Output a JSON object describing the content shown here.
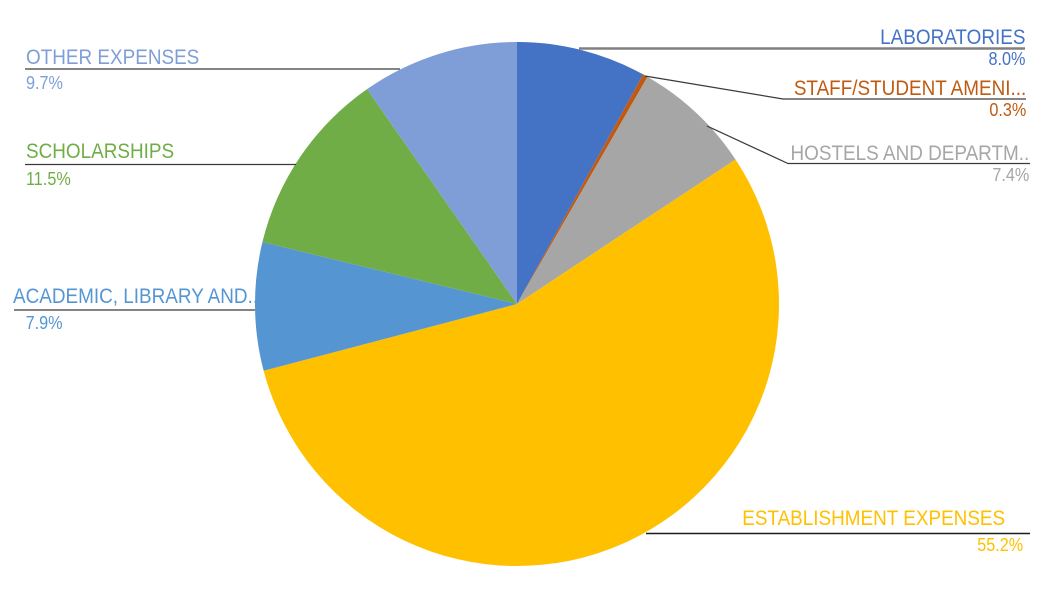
{
  "chart_data": {
    "type": "pie",
    "title": "",
    "legend": "none",
    "start_angle_deg": 0,
    "direction": "clockwise",
    "label_style": "outside-callouts-with-leader-lines",
    "background_color": "#FFFFFF",
    "slices": [
      {
        "id": "laboratories",
        "label": "LABORATORIES",
        "pct_label": "8.0%",
        "value": 8.0,
        "color": "#4472C4"
      },
      {
        "id": "staff-student-amenities",
        "label": "STAFF/STUDENT AMENI...",
        "pct_label": "0.3%",
        "value": 0.3,
        "color": "#C05A11"
      },
      {
        "id": "hostels-and-departments",
        "label": "HOSTELS AND DEPARTM..",
        "pct_label": "7.4%",
        "value": 7.4,
        "color": "#A6A6A6"
      },
      {
        "id": "establishment-expenses",
        "label": "ESTABLISHMENT EXPENSES",
        "pct_label": "55.2%",
        "value": 55.2,
        "color": "#FFC000"
      },
      {
        "id": "academic-library",
        "label": "ACADEMIC, LIBRARY AND...",
        "pct_label": "7.9%",
        "value": 7.9,
        "color": "#5596D2"
      },
      {
        "id": "scholarships",
        "label": "SCHOLARSHIPS",
        "pct_label": "11.5%",
        "value": 11.5,
        "color": "#70AD47"
      },
      {
        "id": "other-expenses",
        "label": "OTHER EXPENSES",
        "pct_label": "9.7%",
        "value": 9.7,
        "color": "#7F9ED7"
      }
    ]
  }
}
